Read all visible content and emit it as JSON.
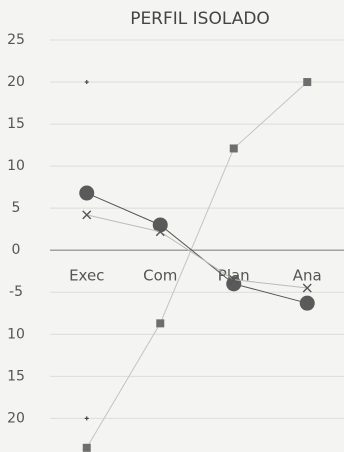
{
  "chart_data": {
    "type": "line",
    "title": "PERFIL ISOLADO",
    "categories": [
      "Exec",
      "Com",
      "Plan",
      "Ana"
    ],
    "ylim": [
      -24,
      25
    ],
    "yticks": [
      25,
      20,
      15,
      10,
      5,
      0,
      -5,
      {
        "value": -10,
        "label": "10"
      },
      {
        "value": -15,
        "label": "15"
      },
      {
        "value": -20,
        "label": "20"
      }
    ],
    "grid": true,
    "series": [
      {
        "color": "#6e6e6e",
        "line_color": "#c4c4c4",
        "marker": "square",
        "values": [
          -23.5,
          -8.7,
          12.1,
          20
        ]
      },
      {
        "color": "#5a5a5a",
        "line_color": "#555555",
        "marker": "circle",
        "values": [
          6.8,
          3,
          -4,
          -6.3
        ]
      },
      {
        "color": "#555555",
        "line_color": "#bbbbbb",
        "marker": "x",
        "values": [
          4.2,
          2.2,
          -3.5,
          -4.5
        ]
      },
      {
        "color": "#444444",
        "line_color": "#444444",
        "marker": "plus",
        "values": [
          20,
          null,
          null,
          null
        ]
      },
      {
        "color": "#444444",
        "line_color": "#444444",
        "marker": "plus",
        "values": [
          -20,
          null,
          null,
          null
        ]
      }
    ]
  }
}
